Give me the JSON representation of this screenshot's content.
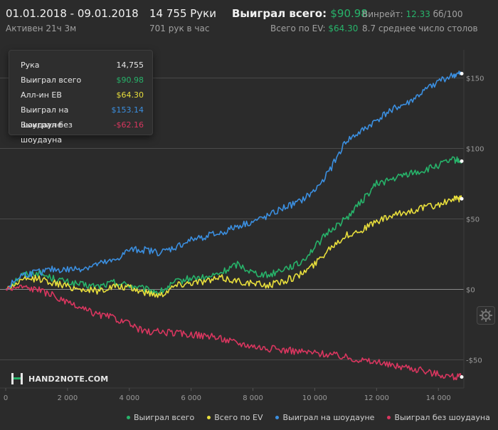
{
  "header": {
    "date_range": "01.01.2018 - 09.01.2018",
    "active_time": "Активен 21ч 3м",
    "hands_total": "14 755 Руки",
    "hands_per_hour": "701 рук в час",
    "won_total_label": "Выиграл всего:",
    "won_total_value": "$90.98",
    "won_ev_label": "Всего по EV:",
    "won_ev_value": "$64.30",
    "winrate_label": "Винрейт:",
    "winrate_value": "12.33",
    "winrate_unit": "бб/100",
    "avg_tables": "8.7 среднее число столов"
  },
  "tooltip": {
    "rows": [
      {
        "label": "Рука",
        "value": "14,755",
        "color": "#e6e6e6"
      },
      {
        "label": "Выиграл всего",
        "value": "$90.98",
        "color": "#27b36a"
      },
      {
        "label": "Алл-ин ЕВ",
        "value": "$64.30",
        "color": "#e9df3c"
      },
      {
        "label": "Выиграл на шоудауне",
        "value": "$153.14",
        "color": "#3b8fe0"
      },
      {
        "label": "Выиграл без шоудауна",
        "value": "-$62.16",
        "color": "#d9365f"
      }
    ]
  },
  "logo": {
    "text": "HAND2NOTE.COM",
    "icon": "h2n-logo-icon"
  },
  "settings": {
    "icon": "gear-icon"
  },
  "chart_data": {
    "type": "line",
    "x_label": "",
    "y_label": "",
    "xlim": [
      0,
      14755
    ],
    "ylim": [
      -70,
      170
    ],
    "x_ticks": [
      0,
      2000,
      4000,
      6000,
      8000,
      10000,
      12000,
      14000
    ],
    "x_tick_labels": [
      "0",
      "2 000",
      "4 000",
      "6 000",
      "8 000",
      "10 000",
      "12 000",
      "14 000"
    ],
    "y_ticks": [
      150,
      100,
      50,
      0,
      -50
    ],
    "y_tick_labels": [
      "$150",
      "$100",
      "$50",
      "$0",
      "-$50"
    ],
    "grid": true,
    "legend_position": "bottom",
    "x": [
      0,
      500,
      1000,
      1500,
      2000,
      2500,
      3000,
      3500,
      4000,
      4500,
      5000,
      5500,
      6000,
      6500,
      7000,
      7500,
      8000,
      8500,
      9000,
      9500,
      10000,
      10500,
      11000,
      11500,
      12000,
      12500,
      13000,
      13500,
      14000,
      14500,
      14755
    ],
    "series": [
      {
        "name": "Выиграл всего",
        "color": "#27b36a",
        "values": [
          0,
          10,
          12,
          8,
          5,
          3,
          2,
          5,
          3,
          0,
          -2,
          5,
          8,
          8,
          12,
          18,
          12,
          10,
          15,
          18,
          30,
          42,
          50,
          62,
          75,
          78,
          82,
          84,
          88,
          92,
          90.98
        ]
      },
      {
        "name": "Всего по EV",
        "color": "#e9df3c",
        "values": [
          0,
          6,
          8,
          5,
          2,
          0,
          -1,
          2,
          1,
          -2,
          -4,
          3,
          5,
          6,
          8,
          6,
          4,
          3,
          6,
          10,
          18,
          30,
          38,
          42,
          48,
          52,
          55,
          58,
          60,
          64,
          64.3
        ]
      },
      {
        "name": "Выиграл на шоудауне",
        "color": "#3b8fe0",
        "values": [
          0,
          10,
          12,
          14,
          14,
          15,
          18,
          20,
          28,
          28,
          26,
          30,
          35,
          38,
          40,
          45,
          48,
          52,
          58,
          62,
          70,
          85,
          105,
          112,
          120,
          128,
          132,
          140,
          148,
          152,
          153.14
        ]
      },
      {
        "name": "Выиграл без шоудауна",
        "color": "#d9365f",
        "values": [
          0,
          2,
          0,
          -4,
          -10,
          -14,
          -18,
          -20,
          -25,
          -30,
          -30,
          -31,
          -32,
          -33,
          -35,
          -38,
          -40,
          -42,
          -43,
          -44,
          -45,
          -46,
          -48,
          -50,
          -52,
          -54,
          -55,
          -58,
          -60,
          -62,
          -62.16
        ]
      }
    ]
  }
}
